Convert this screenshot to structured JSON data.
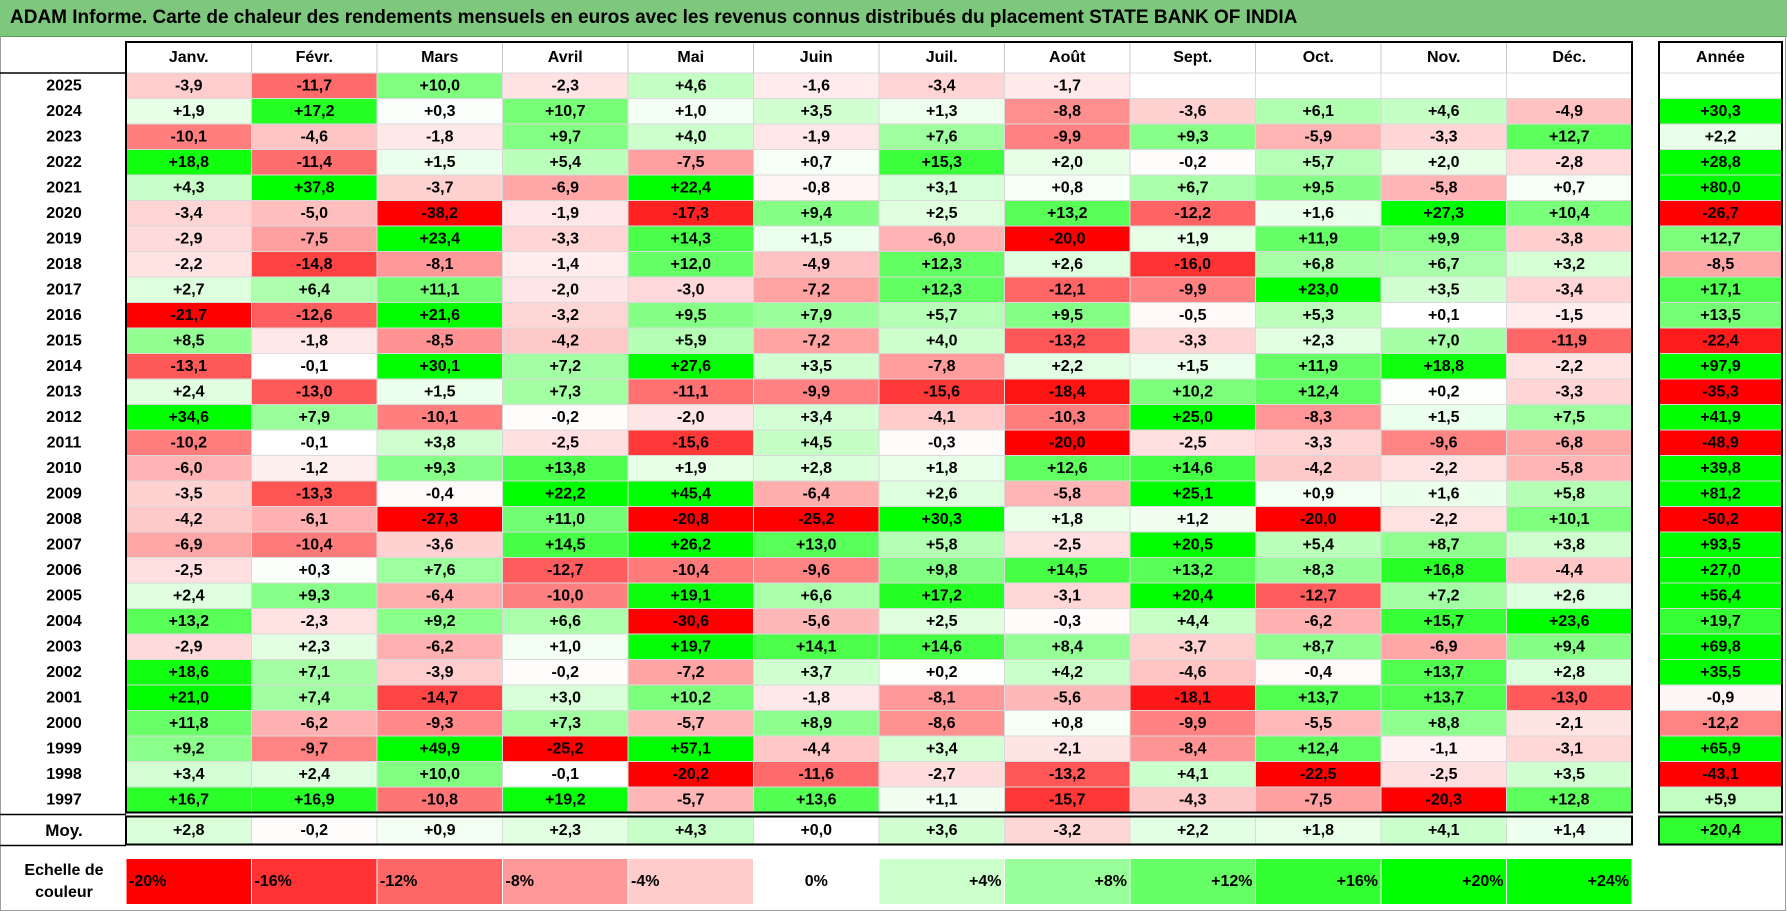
{
  "title": "ADAM Informe. Carte de chaleur des rendements mensuels en euros avec les revenus connus distribués du placement STATE BANK OF INDIA",
  "chart_data": {
    "type": "heatmap",
    "months": [
      "Janv.",
      "Févr.",
      "Mars",
      "Avril",
      "Mai",
      "Juin",
      "Juil.",
      "Août",
      "Sept.",
      "Oct.",
      "Nov.",
      "Déc."
    ],
    "annual_header": "Année",
    "years": [
      "2025",
      "2024",
      "2023",
      "2022",
      "2021",
      "2020",
      "2019",
      "2018",
      "2017",
      "2016",
      "2015",
      "2014",
      "2013",
      "2012",
      "2011",
      "2010",
      "2009",
      "2008",
      "2007",
      "2006",
      "2005",
      "2004",
      "2003",
      "2002",
      "2001",
      "2000",
      "1999",
      "1998",
      "1997"
    ],
    "values": [
      [
        "-3,9",
        "-11,7",
        "+10,0",
        "-2,3",
        "+4,6",
        "-1,6",
        "-3,4",
        "-1,7",
        "",
        "",
        "",
        ""
      ],
      [
        "+1,9",
        "+17,2",
        "+0,3",
        "+10,7",
        "+1,0",
        "+3,5",
        "+1,3",
        "-8,8",
        "-3,6",
        "+6,1",
        "+4,6",
        "-4,9"
      ],
      [
        "-10,1",
        "-4,6",
        "-1,8",
        "+9,7",
        "+4,0",
        "-1,9",
        "+7,6",
        "-9,9",
        "+9,3",
        "-5,9",
        "-3,3",
        "+12,7"
      ],
      [
        "+18,8",
        "-11,4",
        "+1,5",
        "+5,4",
        "-7,5",
        "+0,7",
        "+15,3",
        "+2,0",
        "-0,2",
        "+5,7",
        "+2,0",
        "-2,8"
      ],
      [
        "+4,3",
        "+37,8",
        "-3,7",
        "-6,9",
        "+22,4",
        "-0,8",
        "+3,1",
        "+0,8",
        "+6,7",
        "+9,5",
        "-5,8",
        "+0,7"
      ],
      [
        "-3,4",
        "-5,0",
        "-38,2",
        "-1,9",
        "-17,3",
        "+9,4",
        "+2,5",
        "+13,2",
        "-12,2",
        "+1,6",
        "+27,3",
        "+10,4"
      ],
      [
        "-2,9",
        "-7,5",
        "+23,4",
        "-3,3",
        "+14,3",
        "+1,5",
        "-6,0",
        "-20,0",
        "+1,9",
        "+11,9",
        "+9,9",
        "-3,8"
      ],
      [
        "-2,2",
        "-14,8",
        "-8,1",
        "-1,4",
        "+12,0",
        "-4,9",
        "+12,3",
        "+2,6",
        "-16,0",
        "+6,8",
        "+6,7",
        "+3,2"
      ],
      [
        "+2,7",
        "+6,4",
        "+11,1",
        "-2,0",
        "-3,0",
        "-7,2",
        "+12,3",
        "-12,1",
        "-9,9",
        "+23,0",
        "+3,5",
        "-3,4"
      ],
      [
        "-21,7",
        "-12,6",
        "+21,6",
        "-3,2",
        "+9,5",
        "+7,9",
        "+5,7",
        "+9,5",
        "-0,5",
        "+5,3",
        "+0,1",
        "-1,5"
      ],
      [
        "+8,5",
        "-1,8",
        "-8,5",
        "-4,2",
        "+5,9",
        "-7,2",
        "+4,0",
        "-13,2",
        "-3,3",
        "+2,3",
        "+7,0",
        "-11,9"
      ],
      [
        "-13,1",
        "-0,1",
        "+30,1",
        "+7,2",
        "+27,6",
        "+3,5",
        "-7,8",
        "+2,2",
        "+1,5",
        "+11,9",
        "+18,8",
        "-2,2"
      ],
      [
        "+2,4",
        "-13,0",
        "+1,5",
        "+7,3",
        "-11,1",
        "-9,9",
        "-15,6",
        "-18,4",
        "+10,2",
        "+12,4",
        "+0,2",
        "-3,3"
      ],
      [
        "+34,6",
        "+7,9",
        "-10,1",
        "-0,2",
        "-2,0",
        "+3,4",
        "-4,1",
        "-10,3",
        "+25,0",
        "-8,3",
        "+1,5",
        "+7,5"
      ],
      [
        "-10,2",
        "-0,1",
        "+3,8",
        "-2,5",
        "-15,6",
        "+4,5",
        "-0,3",
        "-20,0",
        "-2,5",
        "-3,3",
        "-9,6",
        "-6,8"
      ],
      [
        "-6,0",
        "-1,2",
        "+9,3",
        "+13,8",
        "+1,9",
        "+2,8",
        "+1,8",
        "+12,6",
        "+14,6",
        "-4,2",
        "-2,2",
        "-5,8"
      ],
      [
        "-3,5",
        "-13,3",
        "-0,4",
        "+22,2",
        "+45,4",
        "-6,4",
        "+2,6",
        "-5,8",
        "+25,1",
        "+0,9",
        "+1,6",
        "+5,8"
      ],
      [
        "-4,2",
        "-6,1",
        "-27,3",
        "+11,0",
        "-20,8",
        "-25,2",
        "+30,3",
        "+1,8",
        "+1,2",
        "-20,0",
        "-2,2",
        "+10,1"
      ],
      [
        "-6,9",
        "-10,4",
        "-3,6",
        "+14,5",
        "+26,2",
        "+13,0",
        "+5,8",
        "-2,5",
        "+20,5",
        "+5,4",
        "+8,7",
        "+3,8"
      ],
      [
        "-2,5",
        "+0,3",
        "+7,6",
        "-12,7",
        "-10,4",
        "-9,6",
        "+9,8",
        "+14,5",
        "+13,2",
        "+8,3",
        "+16,8",
        "-4,4"
      ],
      [
        "+2,4",
        "+9,3",
        "-6,4",
        "-10,0",
        "+19,1",
        "+6,6",
        "+17,2",
        "-3,1",
        "+20,4",
        "-12,7",
        "+7,2",
        "+2,6"
      ],
      [
        "+13,2",
        "-2,3",
        "+9,2",
        "+6,6",
        "-30,6",
        "-5,6",
        "+2,5",
        "-0,3",
        "+4,4",
        "-6,2",
        "+15,7",
        "+23,6"
      ],
      [
        "-2,9",
        "+2,3",
        "-6,2",
        "+1,0",
        "+19,7",
        "+14,1",
        "+14,6",
        "+8,4",
        "-3,7",
        "+8,7",
        "-6,9",
        "+9,4"
      ],
      [
        "+18,6",
        "+7,1",
        "-3,9",
        "-0,2",
        "-7,2",
        "+3,7",
        "+0,2",
        "+4,2",
        "-4,6",
        "-0,4",
        "+13,7",
        "+2,8"
      ],
      [
        "+21,0",
        "+7,4",
        "-14,7",
        "+3,0",
        "+10,2",
        "-1,8",
        "-8,1",
        "-5,6",
        "-18,1",
        "+13,7",
        "+13,7",
        "-13,0"
      ],
      [
        "+11,8",
        "-6,2",
        "-9,3",
        "+7,3",
        "-5,7",
        "+8,9",
        "-8,6",
        "+0,8",
        "-9,9",
        "-5,5",
        "+8,8",
        "-2,1"
      ],
      [
        "+9,2",
        "-9,7",
        "+49,9",
        "-25,2",
        "+57,1",
        "-4,4",
        "+3,4",
        "-2,1",
        "-8,4",
        "+12,4",
        "-1,1",
        "-3,1"
      ],
      [
        "+3,4",
        "+2,4",
        "+10,0",
        "-0,1",
        "-20,2",
        "-11,6",
        "-2,7",
        "-13,2",
        "+4,1",
        "-22,5",
        "-2,5",
        "+3,5"
      ],
      [
        "+16,7",
        "+16,9",
        "-10,8",
        "+19,2",
        "-5,7",
        "+13,6",
        "+1,1",
        "-15,7",
        "-4,3",
        "-7,5",
        "-20,3",
        "+12,8"
      ]
    ],
    "annual": [
      "",
      "+30,3",
      "+2,2",
      "+28,8",
      "+80,0",
      "-26,7",
      "+12,7",
      "-8,5",
      "+17,1",
      "+13,5",
      "-22,4",
      "+97,9",
      "-35,3",
      "+41,9",
      "-48,9",
      "+39,8",
      "+81,2",
      "-50,2",
      "+93,5",
      "+27,0",
      "+56,4",
      "+19,7",
      "+69,8",
      "+35,5",
      "-0,9",
      "-12,2",
      "+65,9",
      "-43,1",
      "+5,9"
    ],
    "average_label": "Moy.",
    "average": [
      "+2,8",
      "-0,2",
      "+0,9",
      "+2,3",
      "+4,3",
      "+0,0",
      "+3,6",
      "-3,2",
      "+2,2",
      "+1,8",
      "+4,1",
      "+1,4"
    ],
    "average_annual": "+20,4",
    "scale_label_line1": "Echelle de",
    "scale_label_line2": "couleur",
    "scale": [
      "-20%",
      "-16%",
      "-12%",
      "-8%",
      "-4%",
      "0%",
      "+4%",
      "+8%",
      "+12%",
      "+16%",
      "+20%",
      "+24%"
    ],
    "colors": {
      "title_bg": "#7ec87e",
      "neg_max": "#ff0000",
      "neutral": "#ffffff",
      "pos_max": "#00ff00"
    }
  }
}
